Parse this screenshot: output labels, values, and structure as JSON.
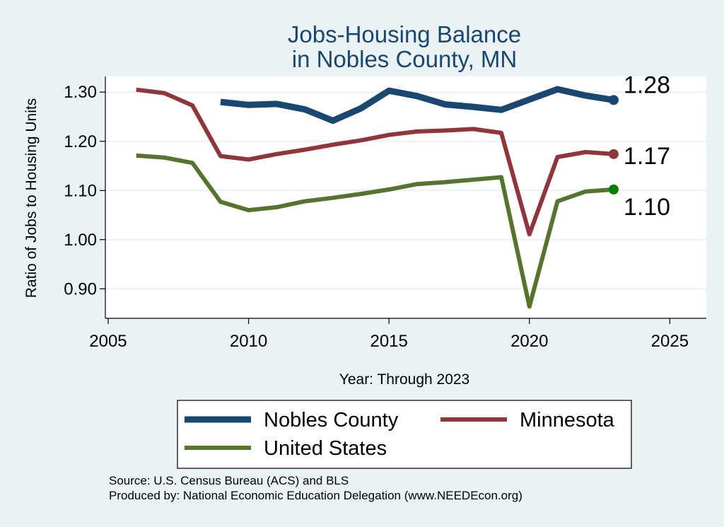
{
  "chart_data": {
    "type": "line",
    "title": [
      "Jobs-Housing Balance",
      "in Nobles County, MN"
    ],
    "xlabel": "Year: Through 2023",
    "ylabel": "Ratio of Jobs to Housing Units",
    "xlim": [
      2004.9,
      2026.3
    ],
    "ylim": [
      0.84,
      1.332
    ],
    "xticks": [
      2005,
      2010,
      2015,
      2020,
      2025
    ],
    "yticks": [
      0.9,
      1.0,
      1.1,
      1.2,
      1.3
    ],
    "ytick_labels": [
      "0.90",
      "1.00",
      "1.10",
      "1.20",
      "1.30"
    ],
    "grid": true,
    "series": [
      {
        "name": "Nobles County",
        "color": "#1a476f",
        "width": "thick",
        "x": [
          2009,
          2010,
          2011,
          2012,
          2013,
          2014,
          2015,
          2016,
          2017,
          2018,
          2019,
          2020,
          2021,
          2022,
          2023
        ],
        "values": [
          1.28,
          1.274,
          1.276,
          1.265,
          1.242,
          1.267,
          1.303,
          1.292,
          1.275,
          1.27,
          1.264,
          1.285,
          1.306,
          1.293,
          1.284
        ],
        "end_label": "1.28"
      },
      {
        "name": "Minnesota",
        "color": "#90353b",
        "width": "medium",
        "x": [
          2006,
          2007,
          2008,
          2009,
          2010,
          2011,
          2012,
          2013,
          2014,
          2015,
          2016,
          2017,
          2018,
          2019,
          2020,
          2021,
          2022,
          2023
        ],
        "values": [
          1.305,
          1.298,
          1.273,
          1.17,
          1.163,
          1.174,
          1.183,
          1.193,
          1.202,
          1.213,
          1.22,
          1.222,
          1.225,
          1.217,
          1.011,
          1.168,
          1.178,
          1.174
        ],
        "end_label": "1.17"
      },
      {
        "name": "United States",
        "color": "#55752f",
        "marker_color": "#008000",
        "width": "medium",
        "x": [
          2006,
          2007,
          2008,
          2009,
          2010,
          2011,
          2012,
          2013,
          2014,
          2015,
          2016,
          2017,
          2018,
          2019,
          2020,
          2021,
          2022,
          2023
        ],
        "values": [
          1.171,
          1.167,
          1.156,
          1.077,
          1.06,
          1.066,
          1.078,
          1.085,
          1.093,
          1.102,
          1.113,
          1.117,
          1.122,
          1.127,
          0.864,
          1.078,
          1.098,
          1.102
        ],
        "end_label": "1.10"
      }
    ],
    "notes": [
      "Source: U.S. Census Bureau (ACS) and BLS",
      "Produced by: National Economic Education Delegation (www.NEEDEcon.org)"
    ]
  },
  "colors": {
    "background": "#eaf2f3",
    "plot_background": "#ffffff",
    "grid": "#eaf2f3",
    "title": "#1a476f"
  }
}
